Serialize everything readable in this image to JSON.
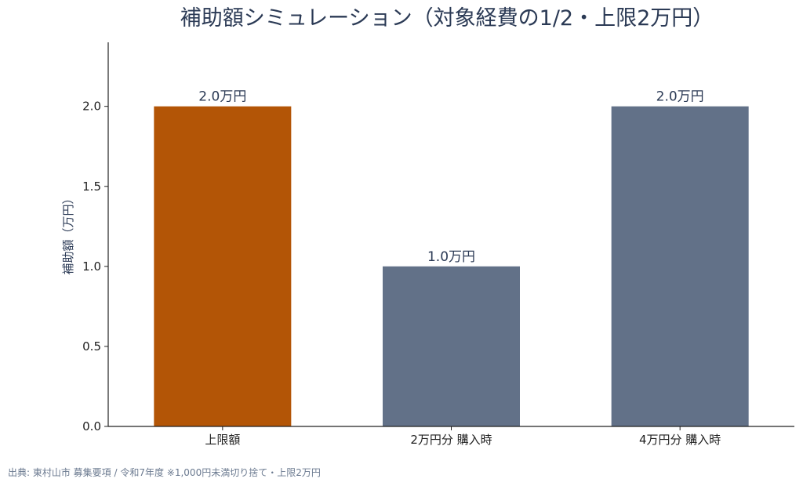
{
  "chart_data": {
    "type": "bar",
    "title": "補助額シミュレーション（対象経費の1/2・上限2万円）",
    "xlabel": "",
    "ylabel": "補助額（万円）",
    "categories": [
      "上限額",
      "2万円分 購入時",
      "4万円分 購入時"
    ],
    "values": [
      2.0,
      1.0,
      2.0
    ],
    "value_labels": [
      "2.0万円",
      "1.0万円",
      "2.0万円"
    ],
    "bar_colors": [
      "#b35506",
      "#627188",
      "#627188"
    ],
    "ylim": [
      0,
      2.4
    ],
    "yticks": [
      0.0,
      0.5,
      1.0,
      1.5,
      2.0
    ],
    "ytick_labels": [
      "0.0",
      "0.5",
      "1.0",
      "1.5",
      "2.0"
    ],
    "grid": false,
    "legend": "none"
  },
  "source_note": "出典: 東村山市 募集要項 / 令和7年度 ※1,000円未満切り捨て・上限2万円"
}
